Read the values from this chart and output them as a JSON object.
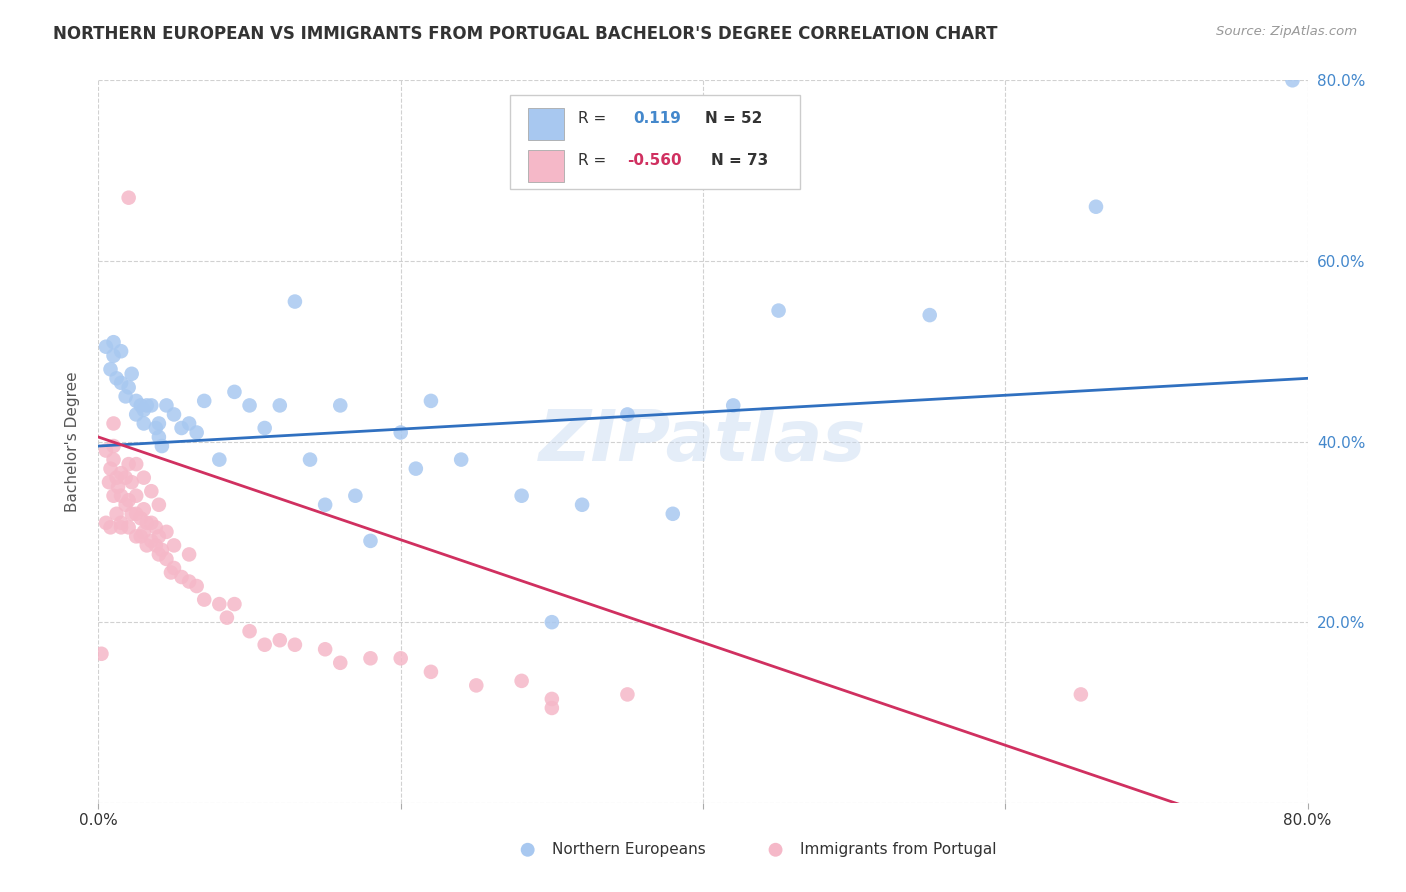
{
  "title": "NORTHERN EUROPEAN VS IMMIGRANTS FROM PORTUGAL BACHELOR'S DEGREE CORRELATION CHART",
  "source": "Source: ZipAtlas.com",
  "ylabel": "Bachelor's Degree",
  "xlim": [
    0.0,
    0.8
  ],
  "ylim": [
    0.0,
    0.8
  ],
  "blue_R": 0.119,
  "blue_N": 52,
  "pink_R": -0.56,
  "pink_N": 73,
  "blue_color": "#a8c8f0",
  "pink_color": "#f5b8c8",
  "blue_line_color": "#3070c0",
  "pink_line_color": "#d03060",
  "watermark_text": "ZIPatlas",
  "blue_scatter_x": [
    0.005,
    0.008,
    0.01,
    0.01,
    0.012,
    0.015,
    0.015,
    0.018,
    0.02,
    0.022,
    0.025,
    0.025,
    0.028,
    0.03,
    0.03,
    0.032,
    0.035,
    0.038,
    0.04,
    0.04,
    0.042,
    0.045,
    0.05,
    0.055,
    0.06,
    0.065,
    0.07,
    0.08,
    0.09,
    0.1,
    0.11,
    0.12,
    0.13,
    0.14,
    0.15,
    0.16,
    0.17,
    0.18,
    0.2,
    0.21,
    0.22,
    0.24,
    0.28,
    0.3,
    0.32,
    0.35,
    0.38,
    0.42,
    0.45,
    0.55,
    0.66,
    0.79
  ],
  "blue_scatter_y": [
    0.505,
    0.48,
    0.51,
    0.495,
    0.47,
    0.5,
    0.465,
    0.45,
    0.46,
    0.475,
    0.445,
    0.43,
    0.44,
    0.435,
    0.42,
    0.44,
    0.44,
    0.415,
    0.42,
    0.405,
    0.395,
    0.44,
    0.43,
    0.415,
    0.42,
    0.41,
    0.445,
    0.38,
    0.455,
    0.44,
    0.415,
    0.44,
    0.555,
    0.38,
    0.33,
    0.44,
    0.34,
    0.29,
    0.41,
    0.37,
    0.445,
    0.38,
    0.34,
    0.2,
    0.33,
    0.43,
    0.32,
    0.44,
    0.545,
    0.54,
    0.66,
    0.8
  ],
  "pink_scatter_x": [
    0.002,
    0.005,
    0.005,
    0.007,
    0.008,
    0.008,
    0.01,
    0.01,
    0.01,
    0.01,
    0.012,
    0.012,
    0.013,
    0.015,
    0.015,
    0.015,
    0.015,
    0.018,
    0.018,
    0.02,
    0.02,
    0.02,
    0.022,
    0.022,
    0.025,
    0.025,
    0.025,
    0.025,
    0.028,
    0.028,
    0.03,
    0.03,
    0.03,
    0.032,
    0.032,
    0.035,
    0.035,
    0.035,
    0.038,
    0.038,
    0.04,
    0.04,
    0.04,
    0.042,
    0.045,
    0.045,
    0.048,
    0.05,
    0.05,
    0.055,
    0.06,
    0.06,
    0.065,
    0.07,
    0.08,
    0.085,
    0.09,
    0.1,
    0.11,
    0.12,
    0.13,
    0.15,
    0.16,
    0.18,
    0.2,
    0.22,
    0.25,
    0.28,
    0.3,
    0.35,
    0.02,
    0.65,
    0.3
  ],
  "pink_scatter_y": [
    0.165,
    0.39,
    0.31,
    0.355,
    0.305,
    0.37,
    0.34,
    0.395,
    0.42,
    0.38,
    0.32,
    0.36,
    0.35,
    0.305,
    0.34,
    0.365,
    0.31,
    0.33,
    0.36,
    0.305,
    0.335,
    0.375,
    0.32,
    0.355,
    0.295,
    0.32,
    0.34,
    0.375,
    0.295,
    0.315,
    0.3,
    0.325,
    0.36,
    0.285,
    0.31,
    0.29,
    0.31,
    0.345,
    0.285,
    0.305,
    0.275,
    0.295,
    0.33,
    0.28,
    0.27,
    0.3,
    0.255,
    0.26,
    0.285,
    0.25,
    0.245,
    0.275,
    0.24,
    0.225,
    0.22,
    0.205,
    0.22,
    0.19,
    0.175,
    0.18,
    0.175,
    0.17,
    0.155,
    0.16,
    0.16,
    0.145,
    0.13,
    0.135,
    0.105,
    0.12,
    0.67,
    0.12,
    0.115
  ]
}
